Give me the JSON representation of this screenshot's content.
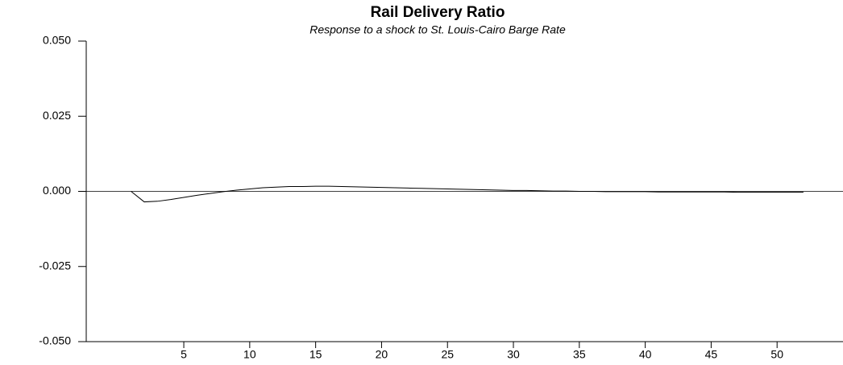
{
  "chart_data": {
    "type": "line",
    "title": "Rail Delivery Ratio",
    "subtitle": "Response to a shock to St. Louis-Cairo Barge Rate",
    "x": [
      1,
      2,
      3,
      4,
      5,
      6,
      7,
      8,
      9,
      10,
      11,
      12,
      13,
      14,
      15,
      16,
      17,
      18,
      19,
      20,
      21,
      22,
      23,
      24,
      25,
      26,
      27,
      28,
      29,
      30,
      31,
      32,
      33,
      34,
      35,
      36,
      37,
      38,
      39,
      40,
      41,
      42,
      43,
      44,
      45,
      46,
      47,
      48,
      49,
      50,
      51,
      52
    ],
    "series": [
      {
        "color": "#000000",
        "values": [
          0,
          -0.0035,
          -0.0033,
          -0.0027,
          -0.002,
          -0.0013,
          -0.0007,
          -0.0001,
          0.0004,
          0.0008,
          0.0012,
          0.0014,
          0.0016,
          0.0016,
          0.0017,
          0.0017,
          0.0016,
          0.0015,
          0.0014,
          0.0013,
          0.0012,
          0.0011,
          0.001,
          0.0009,
          0.0008,
          0.0007,
          0.0006,
          0.0005,
          0.0004,
          0.0003,
          0.0003,
          0.0002,
          0.0001,
          0.0001,
          0,
          0,
          -0.0001,
          -0.0001,
          -0.0001,
          -0.0001,
          -0.0002,
          -0.0002,
          -0.0002,
          -0.0002,
          -0.0002,
          -0.0002,
          -0.0003,
          -0.0003,
          -0.0003,
          -0.0003,
          -0.0003,
          -0.0003
        ]
      }
    ],
    "xlim": [
      -2.4,
      55
    ],
    "ylim": [
      -0.05,
      0.05
    ],
    "xticks": [
      5,
      10,
      15,
      20,
      25,
      30,
      35,
      40,
      45,
      50
    ],
    "yticks": [
      {
        "value": -0.05,
        "label": "-0.050"
      },
      {
        "value": -0.025,
        "label": "-0.025"
      },
      {
        "value": 0,
        "label": "0.000"
      },
      {
        "value": 0.025,
        "label": "0.025"
      },
      {
        "value": 0.05,
        "label": "0.050"
      }
    ],
    "zero_line": true
  }
}
